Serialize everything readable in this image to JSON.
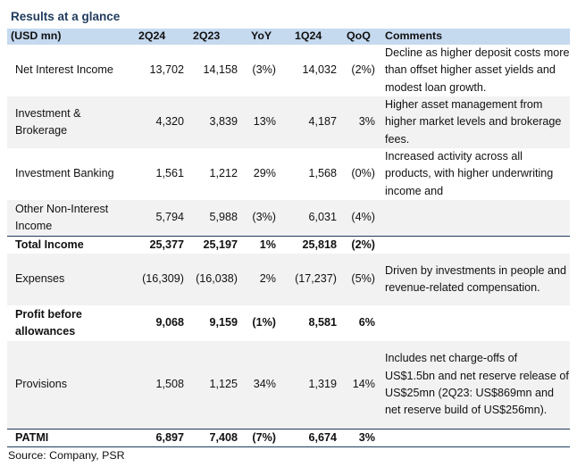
{
  "title": "Results at a glance",
  "headers": {
    "label": "(USD mn)",
    "c1": "2Q24",
    "c2": "2Q23",
    "c3": "YoY",
    "c4": "1Q24",
    "c5": "QoQ",
    "comment": "Comments"
  },
  "rows": [
    {
      "label": "Net Interest Income",
      "c1": "13,702",
      "c2": "14,158",
      "c3": "(3%)",
      "c4": "14,032",
      "c5": "(2%)",
      "comment": "Decline as higher deposit costs more than offset higher asset yields and modest loan growth."
    },
    {
      "label": "Investment & Brokerage",
      "c1": "4,320",
      "c2": "3,839",
      "c3": "13%",
      "c4": "4,187",
      "c5": "3%",
      "comment": "Higher asset management from higher market levels and brokerage fees."
    },
    {
      "label": "Investment Banking",
      "c1": "1,561",
      "c2": "1,212",
      "c3": "29%",
      "c4": "1,568",
      "c5": "(0%)",
      "comment": "Increased activity across all products, with higher underwriting income and"
    },
    {
      "label": "Other Non-Interest Income",
      "c1": "5,794",
      "c2": "5,988",
      "c3": "(3%)",
      "c4": "6,031",
      "c5": "(4%)",
      "comment": ""
    },
    {
      "label": "Total Income",
      "c1": "25,377",
      "c2": "25,197",
      "c3": "1%",
      "c4": "25,818",
      "c5": "(2%)",
      "comment": ""
    },
    {
      "label": "Expenses",
      "c1": "(16,309)",
      "c2": "(16,038)",
      "c3": "2%",
      "c4": "(17,237)",
      "c5": "(5%)",
      "comment": "Driven by investments in people and revenue-related compensation."
    },
    {
      "label": "Profit before allowances",
      "c1": "9,068",
      "c2": "9,159",
      "c3": "(1%)",
      "c4": "8,581",
      "c5": "6%",
      "comment": ""
    },
    {
      "label": "Provisions",
      "c1": "1,508",
      "c2": "1,125",
      "c3": "34%",
      "c4": "1,319",
      "c5": "14%",
      "comment": "Includes net charge-offs of US$1.5bn and net reserve release of US$25mn (2Q23: US$869mn and net reserve build of US$256mn)."
    },
    {
      "label": "PATMI",
      "c1": "6,897",
      "c2": "7,408",
      "c3": "(7%)",
      "c4": "6,674",
      "c5": "3%",
      "comment": ""
    }
  ],
  "source": "Source: Company, PSR"
}
